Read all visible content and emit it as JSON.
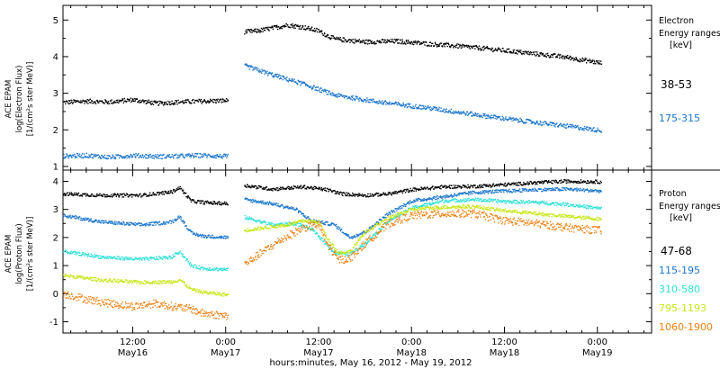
{
  "chart_data": {
    "type": "scatter",
    "xlabel": "hours:minutes, May 16, 2012 - May 19, 2012",
    "x_unit": "hours",
    "xlim": [
      3,
      79
    ],
    "x_ticks": [
      {
        "h": 12,
        "time": "12:00",
        "date": "May16"
      },
      {
        "h": 24,
        "time": "0:00",
        "date": "May17"
      },
      {
        "h": 36,
        "time": "12:00",
        "date": "May17"
      },
      {
        "h": 48,
        "time": "0:00",
        "date": "May18"
      },
      {
        "h": 60,
        "time": "12:00",
        "date": "May18"
      },
      {
        "h": 72,
        "time": "0:00",
        "date": "May19"
      }
    ],
    "data_gap_hours": [
      24.4,
      26.3
    ],
    "panels": [
      {
        "name": "electron",
        "ylabel_lines": [
          "ACE EPAM",
          "log(Electron Flux)",
          "[1/(cm²s ster MeV)]"
        ],
        "ylim": [
          0.9,
          5.4
        ],
        "yticks": [
          1,
          2,
          3,
          4,
          5
        ],
        "legend_title": [
          "Electron",
          "Energy ranges",
          "[keV]"
        ],
        "series": [
          {
            "name": "38-53",
            "color": "#000000",
            "points": [
              [
                3,
                2.75
              ],
              [
                6,
                2.78
              ],
              [
                9,
                2.76
              ],
              [
                12,
                2.82
              ],
              [
                15,
                2.72
              ],
              [
                18,
                2.76
              ],
              [
                21,
                2.78
              ],
              [
                24.3,
                2.8
              ],
              [
                26.4,
                4.68
              ],
              [
                28,
                4.7
              ],
              [
                30,
                4.78
              ],
              [
                32,
                4.86
              ],
              [
                34,
                4.8
              ],
              [
                36,
                4.7
              ],
              [
                37,
                4.58
              ],
              [
                38,
                4.48
              ],
              [
                42,
                4.4
              ],
              [
                46,
                4.42
              ],
              [
                50,
                4.35
              ],
              [
                56,
                4.25
              ],
              [
                62,
                4.12
              ],
              [
                68,
                3.98
              ],
              [
                72.5,
                3.82
              ]
            ]
          },
          {
            "name": "175-315",
            "color": "#1874cd",
            "points": [
              [
                3,
                1.28
              ],
              [
                6,
                1.3
              ],
              [
                9,
                1.25
              ],
              [
                12,
                1.3
              ],
              [
                15,
                1.27
              ],
              [
                18,
                1.28
              ],
              [
                21,
                1.3
              ],
              [
                24.3,
                1.27
              ],
              [
                26.4,
                3.75
              ],
              [
                30,
                3.5
              ],
              [
                34,
                3.25
              ],
              [
                38,
                2.95
              ],
              [
                44,
                2.75
              ],
              [
                50,
                2.6
              ],
              [
                56,
                2.42
              ],
              [
                62,
                2.25
              ],
              [
                68,
                2.1
              ],
              [
                72.5,
                1.98
              ]
            ]
          }
        ]
      },
      {
        "name": "proton",
        "ylabel_lines": [
          "ACE EPAM",
          "log(Proton Flux)",
          "[1/(cm²s ster MeV)]"
        ],
        "ylim": [
          -1.4,
          4.4
        ],
        "yticks": [
          -1,
          0,
          1,
          2,
          3,
          4
        ],
        "legend_title": [
          "Proton",
          "Energy ranges",
          "[keV]"
        ],
        "series": [
          {
            "name": "47-68",
            "color": "#000000",
            "points": [
              [
                3,
                3.55
              ],
              [
                8,
                3.5
              ],
              [
                13,
                3.5
              ],
              [
                17,
                3.62
              ],
              [
                18,
                3.78
              ],
              [
                19.5,
                3.3
              ],
              [
                21,
                3.25
              ],
              [
                24.3,
                3.2
              ],
              [
                26.4,
                3.85
              ],
              [
                30,
                3.72
              ],
              [
                34,
                3.8
              ],
              [
                37,
                3.7
              ],
              [
                39,
                3.55
              ],
              [
                42,
                3.5
              ],
              [
                45,
                3.55
              ],
              [
                48,
                3.7
              ],
              [
                52,
                3.8
              ],
              [
                56,
                3.82
              ],
              [
                60,
                3.88
              ],
              [
                64,
                3.95
              ],
              [
                68,
                4.0
              ],
              [
                72.5,
                3.98
              ]
            ]
          },
          {
            "name": "115-195",
            "color": "#1874cd",
            "points": [
              [
                3,
                2.78
              ],
              [
                8,
                2.55
              ],
              [
                13,
                2.45
              ],
              [
                17,
                2.55
              ],
              [
                18,
                2.75
              ],
              [
                19.5,
                2.15
              ],
              [
                21,
                2.05
              ],
              [
                24.3,
                2.0
              ],
              [
                26.4,
                3.35
              ],
              [
                30,
                3.2
              ],
              [
                33,
                3.0
              ],
              [
                35,
                2.6
              ],
              [
                36,
                2.55
              ],
              [
                38,
                2.45
              ],
              [
                40,
                2.0
              ],
              [
                42,
                2.2
              ],
              [
                45,
                2.85
              ],
              [
                48,
                3.3
              ],
              [
                52,
                3.45
              ],
              [
                56,
                3.6
              ],
              [
                60,
                3.65
              ],
              [
                64,
                3.7
              ],
              [
                68,
                3.72
              ],
              [
                72.5,
                3.65
              ]
            ]
          },
          {
            "name": "310-580",
            "color": "#2ce0d8",
            "points": [
              [
                3,
                1.5
              ],
              [
                8,
                1.3
              ],
              [
                13,
                1.22
              ],
              [
                17,
                1.3
              ],
              [
                18,
                1.5
              ],
              [
                19.5,
                1.0
              ],
              [
                21,
                0.9
              ],
              [
                24.3,
                0.85
              ],
              [
                26.4,
                2.72
              ],
              [
                30,
                2.45
              ],
              [
                33,
                2.5
              ],
              [
                35,
                2.3
              ],
              [
                36.5,
                1.9
              ],
              [
                38,
                1.45
              ],
              [
                40,
                1.4
              ],
              [
                42,
                1.8
              ],
              [
                45,
                2.6
              ],
              [
                48,
                3.05
              ],
              [
                52,
                3.3
              ],
              [
                56,
                3.35
              ],
              [
                60,
                3.28
              ],
              [
                64,
                3.25
              ],
              [
                68,
                3.18
              ],
              [
                72.5,
                3.02
              ]
            ]
          },
          {
            "name": "795-1193",
            "color": "#c8e617",
            "points": [
              [
                3,
                0.65
              ],
              [
                8,
                0.48
              ],
              [
                13,
                0.4
              ],
              [
                17,
                0.42
              ],
              [
                18,
                0.5
              ],
              [
                19.5,
                0.15
              ],
              [
                21,
                0.05
              ],
              [
                24.3,
                -0.05
              ],
              [
                26.4,
                2.25
              ],
              [
                29,
                2.35
              ],
              [
                32,
                2.45
              ],
              [
                34,
                2.6
              ],
              [
                36,
                2.55
              ],
              [
                37,
                2.0
              ],
              [
                38.5,
                1.45
              ],
              [
                40,
                1.5
              ],
              [
                42,
                2.2
              ],
              [
                45,
                2.7
              ],
              [
                48,
                3.0
              ],
              [
                52,
                3.08
              ],
              [
                56,
                3.1
              ],
              [
                60,
                2.95
              ],
              [
                64,
                2.85
              ],
              [
                68,
                2.75
              ],
              [
                72.5,
                2.65
              ]
            ]
          },
          {
            "name": "1060-1900",
            "color": "#ee8010",
            "points": [
              [
                3,
                0.0
              ],
              [
                6,
                -0.2
              ],
              [
                9,
                -0.35
              ],
              [
                12,
                -0.45
              ],
              [
                15,
                -0.35
              ],
              [
                17,
                -0.45
              ],
              [
                19.5,
                -0.55
              ],
              [
                21,
                -0.7
              ],
              [
                24.3,
                -0.8
              ],
              [
                26.4,
                1.05
              ],
              [
                28,
                1.35
              ],
              [
                31,
                1.9
              ],
              [
                34,
                2.35
              ],
              [
                36,
                2.45
              ],
              [
                37,
                1.8
              ],
              [
                38.5,
                1.2
              ],
              [
                40,
                1.25
              ],
              [
                42,
                1.8
              ],
              [
                45,
                2.5
              ],
              [
                48,
                2.78
              ],
              [
                52,
                2.85
              ],
              [
                56,
                2.85
              ],
              [
                60,
                2.6
              ],
              [
                64,
                2.5
              ],
              [
                68,
                2.35
              ],
              [
                72.5,
                2.25
              ]
            ]
          }
        ]
      }
    ]
  }
}
